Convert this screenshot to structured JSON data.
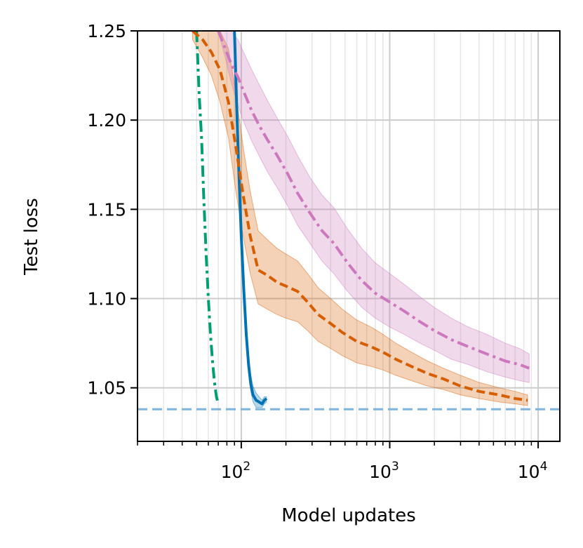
{
  "chart_data": {
    "type": "line",
    "xlabel": "Model updates",
    "ylabel": "Test loss",
    "xscale": "log",
    "xlim": [
      20,
      14000
    ],
    "ylim": [
      1.02,
      1.25
    ],
    "grid": true,
    "legend": "none",
    "x_ticks": [
      {
        "value": 100,
        "base": "10",
        "exp": "2"
      },
      {
        "value": 1000,
        "base": "10",
        "exp": "3"
      },
      {
        "value": 10000,
        "base": "10",
        "exp": "4"
      }
    ],
    "y_ticks": [
      {
        "value": 1.05,
        "label": "1.05"
      },
      {
        "value": 1.1,
        "label": "1.10"
      },
      {
        "value": 1.15,
        "label": "1.15"
      },
      {
        "value": 1.2,
        "label": "1.20"
      },
      {
        "value": 1.25,
        "label": "1.25"
      }
    ],
    "reference_line": {
      "y": 1.038,
      "color": "#7fb5dc",
      "dash": "dashed"
    },
    "series": [
      {
        "color": "#029e73",
        "style": "dashdot",
        "band": false,
        "x": [
          50,
          52,
          54,
          56,
          58,
          60,
          62,
          64,
          66,
          68,
          70
        ],
        "y": [
          1.25,
          1.215,
          1.19,
          1.155,
          1.125,
          1.1,
          1.08,
          1.065,
          1.053,
          1.045,
          1.041
        ]
      },
      {
        "color": "#0173b2",
        "style": "solid",
        "band": true,
        "x": [
          90,
          93,
          96,
          100,
          104,
          108,
          112,
          116,
          120,
          126,
          132,
          138,
          143,
          148
        ],
        "y": [
          1.25,
          1.21,
          1.175,
          1.135,
          1.105,
          1.08,
          1.063,
          1.052,
          1.046,
          1.043,
          1.042,
          1.041,
          1.043,
          1.044
        ],
        "upper": [
          1.25,
          1.215,
          1.18,
          1.14,
          1.11,
          1.085,
          1.068,
          1.057,
          1.051,
          1.047,
          1.045,
          1.043,
          1.045,
          1.045
        ],
        "lower": [
          1.245,
          1.205,
          1.17,
          1.13,
          1.1,
          1.075,
          1.058,
          1.048,
          1.042,
          1.039,
          1.039,
          1.039,
          1.041,
          1.042
        ]
      },
      {
        "color": "#d55e00",
        "style": "dashed",
        "band": true,
        "x": [
          47,
          55,
          63,
          72,
          82,
          92,
          103,
          115,
          130,
          150,
          175,
          200,
          240,
          280,
          330,
          400,
          480,
          600,
          750,
          900,
          1100,
          1400,
          1800,
          2300,
          3000,
          4000,
          5500,
          7000,
          8500
        ],
        "y": [
          1.25,
          1.245,
          1.238,
          1.228,
          1.21,
          1.185,
          1.158,
          1.135,
          1.116,
          1.113,
          1.109,
          1.107,
          1.104,
          1.098,
          1.091,
          1.086,
          1.081,
          1.076,
          1.073,
          1.07,
          1.066,
          1.062,
          1.058,
          1.055,
          1.051,
          1.048,
          1.046,
          1.044,
          1.043
        ],
        "upper": [
          1.25,
          1.25,
          1.25,
          1.25,
          1.24,
          1.215,
          1.185,
          1.16,
          1.138,
          1.133,
          1.128,
          1.125,
          1.121,
          1.114,
          1.106,
          1.1,
          1.094,
          1.088,
          1.084,
          1.08,
          1.075,
          1.07,
          1.065,
          1.061,
          1.057,
          1.053,
          1.05,
          1.048,
          1.046
        ],
        "lower": [
          1.245,
          1.235,
          1.225,
          1.21,
          1.19,
          1.16,
          1.135,
          1.114,
          1.097,
          1.094,
          1.091,
          1.089,
          1.087,
          1.082,
          1.076,
          1.072,
          1.068,
          1.064,
          1.062,
          1.06,
          1.057,
          1.054,
          1.051,
          1.049,
          1.046,
          1.044,
          1.042,
          1.041,
          1.04
        ]
      },
      {
        "color": "#cc78bc",
        "style": "dashdot",
        "band": true,
        "x": [
          70,
          78,
          85,
          95,
          105,
          118,
          132,
          150,
          175,
          205,
          240,
          290,
          350,
          420,
          520,
          650,
          800,
          1000,
          1250,
          1600,
          2000,
          2600,
          3400,
          4500,
          6000,
          7500,
          8700
        ],
        "y": [
          1.25,
          1.24,
          1.232,
          1.224,
          1.215,
          1.205,
          1.197,
          1.189,
          1.18,
          1.17,
          1.159,
          1.148,
          1.138,
          1.131,
          1.12,
          1.11,
          1.103,
          1.098,
          1.093,
          1.087,
          1.082,
          1.077,
          1.073,
          1.069,
          1.065,
          1.063,
          1.061
        ],
        "upper": [
          1.25,
          1.25,
          1.25,
          1.245,
          1.237,
          1.228,
          1.22,
          1.211,
          1.201,
          1.191,
          1.18,
          1.168,
          1.158,
          1.151,
          1.139,
          1.128,
          1.12,
          1.114,
          1.108,
          1.101,
          1.095,
          1.089,
          1.084,
          1.08,
          1.075,
          1.072,
          1.069
        ],
        "lower": [
          1.25,
          1.235,
          1.222,
          1.208,
          1.198,
          1.188,
          1.18,
          1.171,
          1.162,
          1.152,
          1.141,
          1.131,
          1.121,
          1.114,
          1.104,
          1.095,
          1.089,
          1.084,
          1.08,
          1.075,
          1.071,
          1.066,
          1.063,
          1.059,
          1.056,
          1.054,
          1.053
        ]
      }
    ]
  }
}
